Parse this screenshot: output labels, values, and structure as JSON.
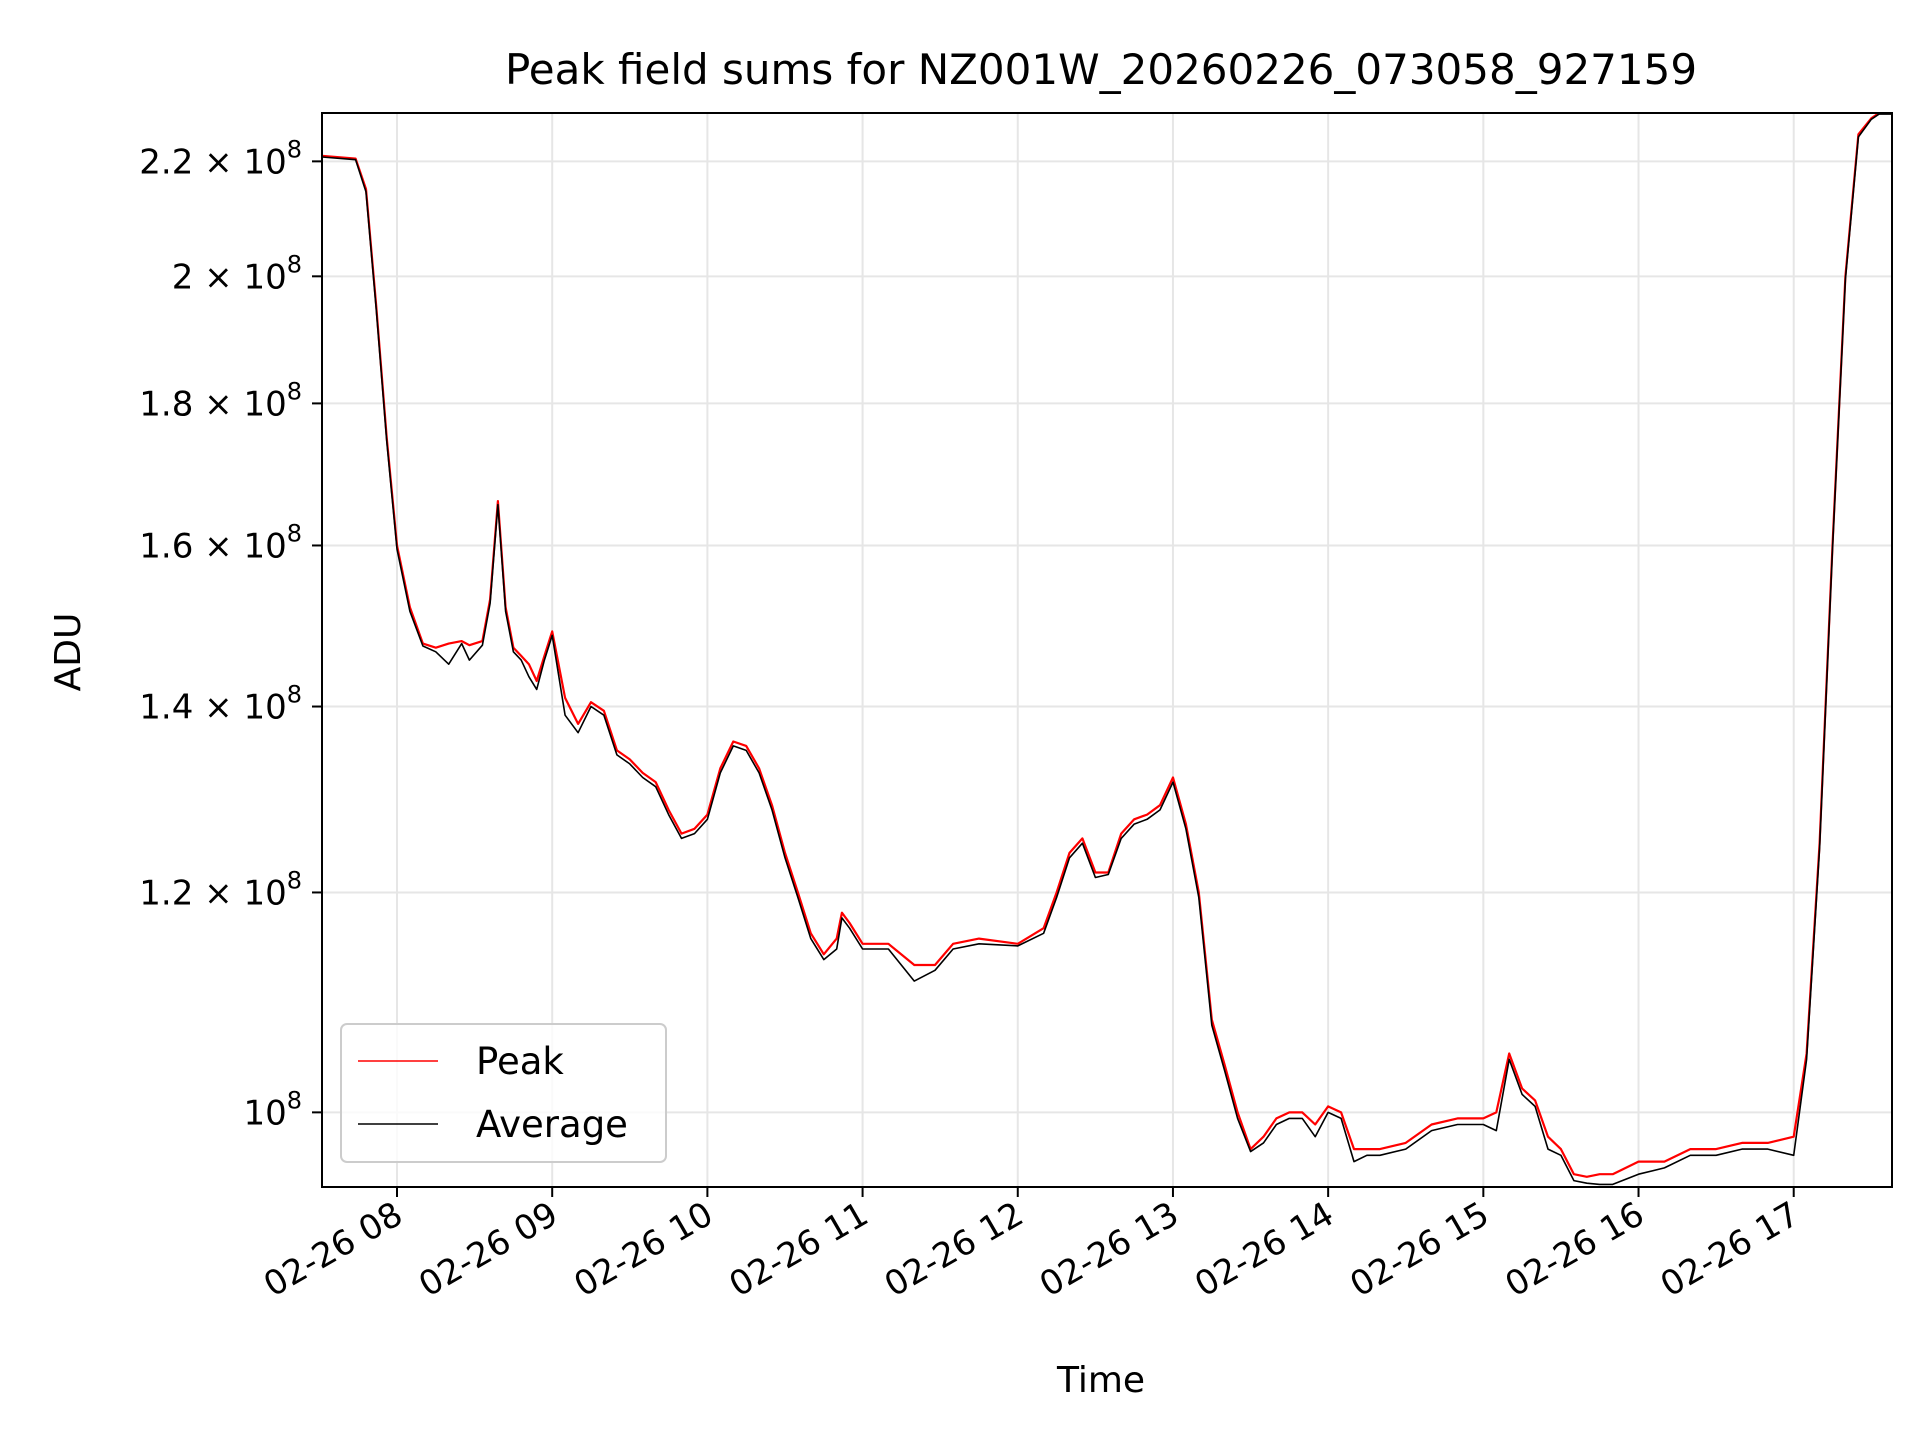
{
  "chart_data": {
    "type": "line",
    "title": "Peak field sums for NZ001W_20260226_073058_927159",
    "xlabel": "Time",
    "ylabel": "ADU",
    "y_scale": "log",
    "grid": true,
    "legend_position": "lower-left",
    "x_axis_format": "%m-%d %H",
    "xlim": [
      "2026-02-26 07:31",
      "2026-02-26 17:38"
    ],
    "ylim": [
      94000000,
      229000000
    ],
    "x_ticks": [
      "02-26 08",
      "02-26 09",
      "02-26 10",
      "02-26 11",
      "02-26 12",
      "02-26 13",
      "02-26 14",
      "02-26 15",
      "02-26 16",
      "02-26 17"
    ],
    "x_tick_values": [
      "2026-02-26 08:00",
      "2026-02-26 09:00",
      "2026-02-26 10:00",
      "2026-02-26 11:00",
      "2026-02-26 12:00",
      "2026-02-26 13:00",
      "2026-02-26 14:00",
      "2026-02-26 15:00",
      "2026-02-26 16:00",
      "2026-02-26 17:00"
    ],
    "y_ticks": [
      {
        "value": 100000000,
        "mantissa": "",
        "exponent": "8"
      },
      {
        "value": 120000000,
        "mantissa": "1.2",
        "exponent": "8"
      },
      {
        "value": 140000000,
        "mantissa": "1.4",
        "exponent": "8"
      },
      {
        "value": 160000000,
        "mantissa": "1.6",
        "exponent": "8"
      },
      {
        "value": 180000000,
        "mantissa": "1.8",
        "exponent": "8"
      },
      {
        "value": 200000000,
        "mantissa": "2",
        "exponent": "8"
      },
      {
        "value": 220000000,
        "mantissa": "2.2",
        "exponent": "8"
      }
    ],
    "series": [
      {
        "name": "Peak",
        "color": "#ff0000",
        "x": [
          "2026-02-26 07:31",
          "2026-02-26 07:44",
          "2026-02-26 07:48",
          "2026-02-26 07:52",
          "2026-02-26 07:56",
          "2026-02-26 08:00",
          "2026-02-26 08:05",
          "2026-02-26 08:10",
          "2026-02-26 08:15",
          "2026-02-26 08:20",
          "2026-02-26 08:25",
          "2026-02-26 08:28",
          "2026-02-26 08:33",
          "2026-02-26 08:36",
          "2026-02-26 08:39",
          "2026-02-26 08:42",
          "2026-02-26 08:45",
          "2026-02-26 08:48",
          "2026-02-26 08:51",
          "2026-02-26 08:54",
          "2026-02-26 08:57",
          "2026-02-26 09:00",
          "2026-02-26 09:05",
          "2026-02-26 09:10",
          "2026-02-26 09:15",
          "2026-02-26 09:20",
          "2026-02-26 09:25",
          "2026-02-26 09:30",
          "2026-02-26 09:35",
          "2026-02-26 09:40",
          "2026-02-26 09:45",
          "2026-02-26 09:50",
          "2026-02-26 09:55",
          "2026-02-26 10:00",
          "2026-02-26 10:05",
          "2026-02-26 10:10",
          "2026-02-26 10:15",
          "2026-02-26 10:20",
          "2026-02-26 10:25",
          "2026-02-26 10:30",
          "2026-02-26 10:35",
          "2026-02-26 10:40",
          "2026-02-26 10:45",
          "2026-02-26 10:50",
          "2026-02-26 10:52",
          "2026-02-26 10:55",
          "2026-02-26 11:00",
          "2026-02-26 11:10",
          "2026-02-26 11:20",
          "2026-02-26 11:28",
          "2026-02-26 11:35",
          "2026-02-26 11:45",
          "2026-02-26 12:00",
          "2026-02-26 12:10",
          "2026-02-26 12:15",
          "2026-02-26 12:20",
          "2026-02-26 12:25",
          "2026-02-26 12:30",
          "2026-02-26 12:35",
          "2026-02-26 12:40",
          "2026-02-26 12:45",
          "2026-02-26 12:50",
          "2026-02-26 12:55",
          "2026-02-26 13:00",
          "2026-02-26 13:05",
          "2026-02-26 13:10",
          "2026-02-26 13:15",
          "2026-02-26 13:20",
          "2026-02-26 13:25",
          "2026-02-26 13:30",
          "2026-02-26 13:35",
          "2026-02-26 13:40",
          "2026-02-26 13:45",
          "2026-02-26 13:50",
          "2026-02-26 13:55",
          "2026-02-26 14:00",
          "2026-02-26 14:05",
          "2026-02-26 14:10",
          "2026-02-26 14:15",
          "2026-02-26 14:20",
          "2026-02-26 14:30",
          "2026-02-26 14:40",
          "2026-02-26 14:50",
          "2026-02-26 15:00",
          "2026-02-26 15:05",
          "2026-02-26 15:10",
          "2026-02-26 15:15",
          "2026-02-26 15:20",
          "2026-02-26 15:25",
          "2026-02-26 15:30",
          "2026-02-26 15:35",
          "2026-02-26 15:40",
          "2026-02-26 15:45",
          "2026-02-26 15:50",
          "2026-02-26 16:00",
          "2026-02-26 16:10",
          "2026-02-26 16:20",
          "2026-02-26 16:30",
          "2026-02-26 16:40",
          "2026-02-26 16:50",
          "2026-02-26 17:00",
          "2026-02-26 17:05",
          "2026-02-26 17:10",
          "2026-02-26 17:15",
          "2026-02-26 17:20",
          "2026-02-26 17:25",
          "2026-02-26 17:30",
          "2026-02-26 17:33",
          "2026-02-26 17:38"
        ],
        "values": [
          221000000,
          220500000,
          215000000,
          195000000,
          175000000,
          160000000,
          152000000,
          147500000,
          147000000,
          147500000,
          147800000,
          147300000,
          147800000,
          153000000,
          166000000,
          152000000,
          147000000,
          146000000,
          145000000,
          143000000,
          146000000,
          149000000,
          141000000,
          138000000,
          140500000,
          139500000,
          135000000,
          134000000,
          132500000,
          131500000,
          128500000,
          126000000,
          126500000,
          128000000,
          133000000,
          136000000,
          135500000,
          133000000,
          129000000,
          124000000,
          120000000,
          116000000,
          114000000,
          115500000,
          118000000,
          117000000,
          115000000,
          115000000,
          113000000,
          113000000,
          115000000,
          115500000,
          115000000,
          116500000,
          120000000,
          124000000,
          125500000,
          122000000,
          122000000,
          126000000,
          127500000,
          128000000,
          129000000,
          132000000,
          127000000,
          120000000,
          108000000,
          104000000,
          100000000,
          97000000,
          98000000,
          99500000,
          100000000,
          100000000,
          99000000,
          100500000,
          100000000,
          97000000,
          97000000,
          97000000,
          97500000,
          99000000,
          99500000,
          99500000,
          100000000,
          105000000,
          102000000,
          101000000,
          98000000,
          97000000,
          95000000,
          94800000,
          95000000,
          95000000,
          96000000,
          96000000,
          97000000,
          97000000,
          97500000,
          97500000,
          98000000,
          105000000,
          125000000,
          160000000,
          200000000,
          225000000,
          228000000,
          229000000,
          229000000
        ]
      },
      {
        "name": "Average",
        "color": "#000000",
        "x": [
          "2026-02-26 07:31",
          "2026-02-26 07:44",
          "2026-02-26 07:48",
          "2026-02-26 07:52",
          "2026-02-26 07:56",
          "2026-02-26 08:00",
          "2026-02-26 08:05",
          "2026-02-26 08:10",
          "2026-02-26 08:15",
          "2026-02-26 08:20",
          "2026-02-26 08:25",
          "2026-02-26 08:28",
          "2026-02-26 08:33",
          "2026-02-26 08:36",
          "2026-02-26 08:39",
          "2026-02-26 08:42",
          "2026-02-26 08:45",
          "2026-02-26 08:48",
          "2026-02-26 08:51",
          "2026-02-26 08:54",
          "2026-02-26 08:57",
          "2026-02-26 09:00",
          "2026-02-26 09:05",
          "2026-02-26 09:10",
          "2026-02-26 09:15",
          "2026-02-26 09:20",
          "2026-02-26 09:25",
          "2026-02-26 09:30",
          "2026-02-26 09:35",
          "2026-02-26 09:40",
          "2026-02-26 09:45",
          "2026-02-26 09:50",
          "2026-02-26 09:55",
          "2026-02-26 10:00",
          "2026-02-26 10:05",
          "2026-02-26 10:10",
          "2026-02-26 10:15",
          "2026-02-26 10:20",
          "2026-02-26 10:25",
          "2026-02-26 10:30",
          "2026-02-26 10:35",
          "2026-02-26 10:40",
          "2026-02-26 10:45",
          "2026-02-26 10:50",
          "2026-02-26 10:52",
          "2026-02-26 10:55",
          "2026-02-26 11:00",
          "2026-02-26 11:10",
          "2026-02-26 11:20",
          "2026-02-26 11:28",
          "2026-02-26 11:35",
          "2026-02-26 11:45",
          "2026-02-26 12:00",
          "2026-02-26 12:10",
          "2026-02-26 12:15",
          "2026-02-26 12:20",
          "2026-02-26 12:25",
          "2026-02-26 12:30",
          "2026-02-26 12:35",
          "2026-02-26 12:40",
          "2026-02-26 12:45",
          "2026-02-26 12:50",
          "2026-02-26 12:55",
          "2026-02-26 13:00",
          "2026-02-26 13:05",
          "2026-02-26 13:10",
          "2026-02-26 13:15",
          "2026-02-26 13:20",
          "2026-02-26 13:25",
          "2026-02-26 13:30",
          "2026-02-26 13:35",
          "2026-02-26 13:40",
          "2026-02-26 13:45",
          "2026-02-26 13:50",
          "2026-02-26 13:55",
          "2026-02-26 14:00",
          "2026-02-26 14:05",
          "2026-02-26 14:10",
          "2026-02-26 14:15",
          "2026-02-26 14:20",
          "2026-02-26 14:30",
          "2026-02-26 14:40",
          "2026-02-26 14:50",
          "2026-02-26 15:00",
          "2026-02-26 15:05",
          "2026-02-26 15:10",
          "2026-02-26 15:15",
          "2026-02-26 15:20",
          "2026-02-26 15:25",
          "2026-02-26 15:30",
          "2026-02-26 15:35",
          "2026-02-26 15:40",
          "2026-02-26 15:45",
          "2026-02-26 15:50",
          "2026-02-26 16:00",
          "2026-02-26 16:10",
          "2026-02-26 16:20",
          "2026-02-26 16:30",
          "2026-02-26 16:40",
          "2026-02-26 16:50",
          "2026-02-26 17:00",
          "2026-02-26 17:05",
          "2026-02-26 17:10",
          "2026-02-26 17:15",
          "2026-02-26 17:20",
          "2026-02-26 17:25",
          "2026-02-26 17:30",
          "2026-02-26 17:33",
          "2026-02-26 17:38"
        ],
        "values": [
          220800000,
          220300000,
          214500000,
          194500000,
          174500000,
          159500000,
          151500000,
          147200000,
          146500000,
          145000000,
          147500000,
          145500000,
          147300000,
          152500000,
          165500000,
          151500000,
          146500000,
          145500000,
          143500000,
          142000000,
          145500000,
          148500000,
          139000000,
          137000000,
          140000000,
          139000000,
          134500000,
          133500000,
          132000000,
          131000000,
          128000000,
          125500000,
          126000000,
          127500000,
          132500000,
          135500000,
          135000000,
          132500000,
          128500000,
          123500000,
          119500000,
          115500000,
          113500000,
          114500000,
          117500000,
          116500000,
          114500000,
          114500000,
          111500000,
          112500000,
          114500000,
          115000000,
          114800000,
          116000000,
          119500000,
          123500000,
          125000000,
          121500000,
          121800000,
          125500000,
          127000000,
          127500000,
          128500000,
          131500000,
          126500000,
          119500000,
          107500000,
          103500000,
          99500000,
          96800000,
          97500000,
          99000000,
          99500000,
          99500000,
          98000000,
          100000000,
          99500000,
          96000000,
          96500000,
          96500000,
          97000000,
          98500000,
          99000000,
          99000000,
          98500000,
          104500000,
          101500000,
          100500000,
          97000000,
          96500000,
          94500000,
          94300000,
          94200000,
          94200000,
          95000000,
          95500000,
          96500000,
          96500000,
          97000000,
          97000000,
          96500000,
          104500000,
          124500000,
          159500000,
          199500000,
          224500000,
          227800000,
          228800000,
          228800000
        ]
      }
    ]
  }
}
